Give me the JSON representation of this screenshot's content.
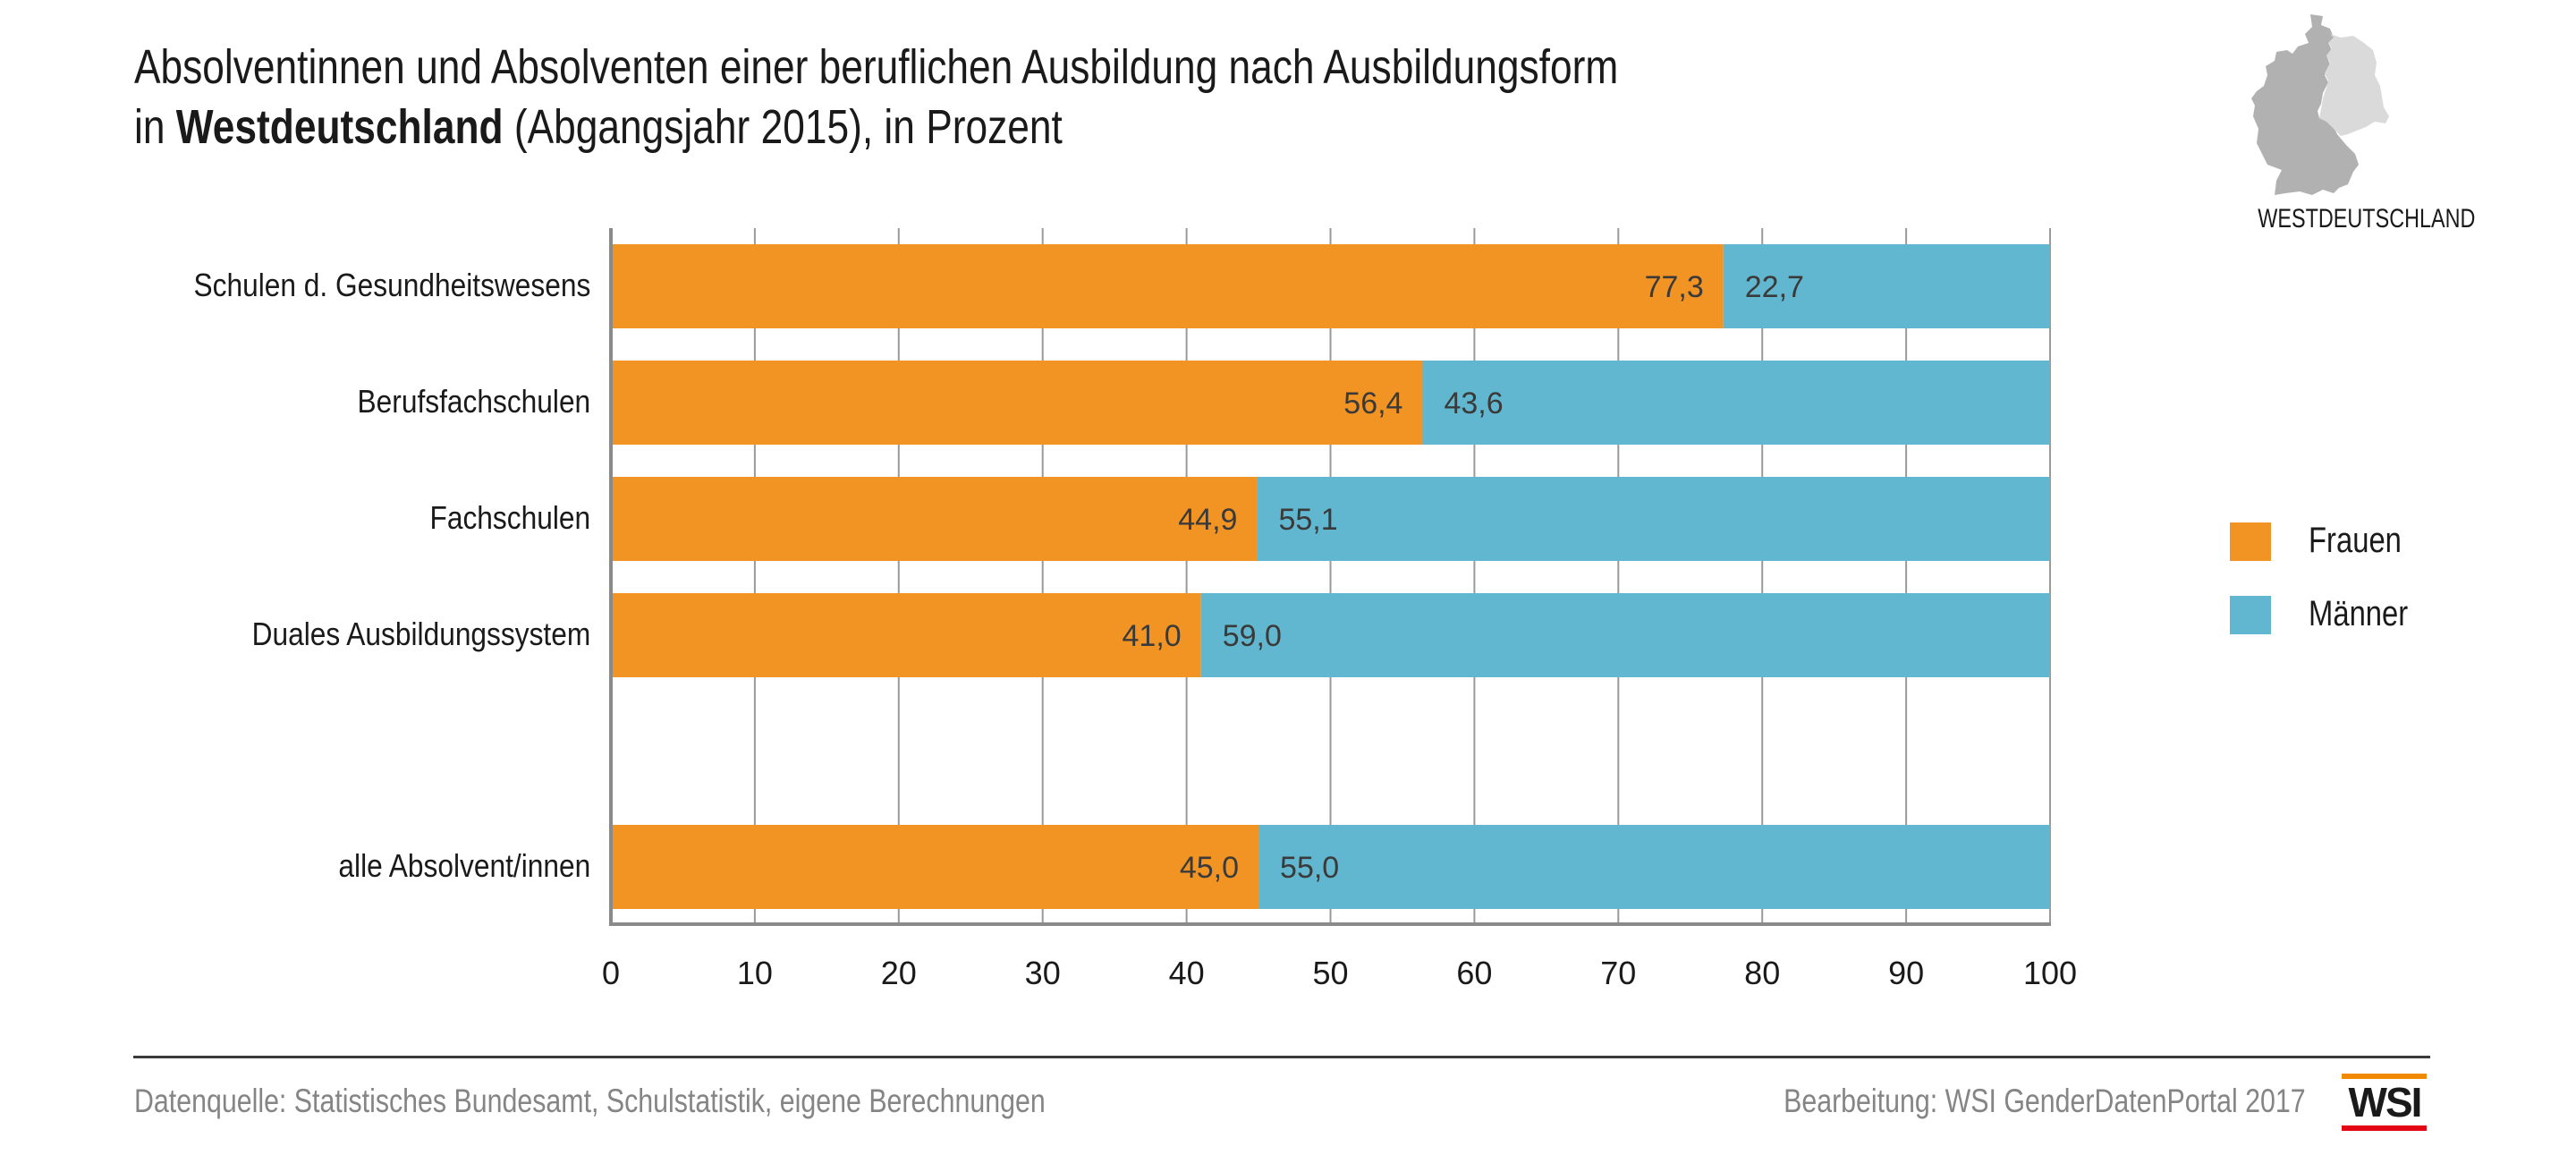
{
  "title": {
    "line1": "Absolventinnen und Absolventen einer beruflichen Ausbildung nach Ausbildungsform",
    "line2_prefix": "in ",
    "line2_bold": "Westdeutschland",
    "line2_suffix": " (Abgangsjahr 2015), in Prozent"
  },
  "map": {
    "icon": "germany-map-icon",
    "label": "WESTDEUTSCHLAND",
    "colors": {
      "west": "#b1b1b1",
      "east": "#dadada"
    }
  },
  "legend": [
    {
      "label": "Frauen",
      "color": "#f29423"
    },
    {
      "label": "Männer",
      "color": "#61b7cf"
    }
  ],
  "footer": {
    "source": "Datenquelle: Statistisches Bundesamt, Schulstatistik, eigene Berechnungen",
    "credit": "Bearbeitung: WSI GenderDatenPortal 2017",
    "logo_text": "WSI",
    "logo_colors": {
      "top": "#f18a00",
      "bottom": "#e30613"
    }
  },
  "chart_data": {
    "type": "bar",
    "orientation": "horizontal",
    "stacked": true,
    "title": "Absolventinnen und Absolventen einer beruflichen Ausbildung nach Ausbildungsform in Westdeutschland (Abgangsjahr 2015), in Prozent",
    "categories": [
      "Schulen d. Gesundheitswesens",
      "Berufsfachschulen",
      "Fachschulen",
      "Duales Ausbildungssystem",
      "alle Absolvent/innen"
    ],
    "gap_before_last": true,
    "series": [
      {
        "name": "Frauen",
        "color": "#f29423",
        "values": [
          77.3,
          56.4,
          44.9,
          41.0,
          45.0
        ],
        "labels": [
          "77,3",
          "56,4",
          "44,9",
          "41,0",
          "45,0"
        ]
      },
      {
        "name": "Männer",
        "color": "#61b7cf",
        "values": [
          22.7,
          43.6,
          55.1,
          59.0,
          55.0
        ],
        "labels": [
          "22,7",
          "43,6",
          "55,1",
          "59,0",
          "55,0"
        ]
      }
    ],
    "xlabel": "",
    "ylabel": "",
    "xlim": [
      0,
      100
    ],
    "xticks": [
      0,
      10,
      20,
      30,
      40,
      50,
      60,
      70,
      80,
      90,
      100
    ],
    "xtick_labels": [
      "0",
      "10",
      "20",
      "30",
      "40",
      "50",
      "60",
      "70",
      "80",
      "90",
      "100"
    ],
    "grid": "vertical",
    "legend_position": "right"
  }
}
